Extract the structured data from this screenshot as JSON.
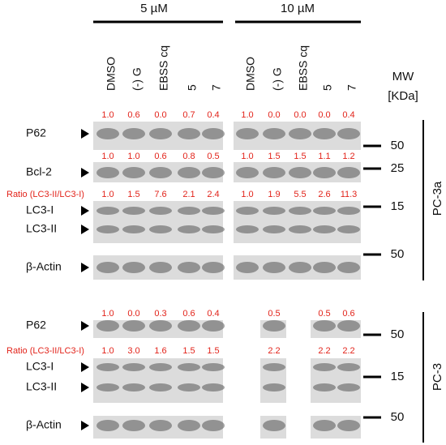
{
  "conditions": [
    {
      "label": "5 µM",
      "lanes": [
        "DMSO",
        "(-) G",
        "EBSS cq",
        "5",
        "7"
      ]
    },
    {
      "label": "10 µM",
      "lanes": [
        "DMSO",
        "(-) G",
        "EBSS cq",
        "5",
        "7"
      ]
    }
  ],
  "mw_header": [
    "MW",
    "[KDa]"
  ],
  "panels": [
    {
      "cell_line": "PC-3a",
      "blots": [
        {
          "labels": [
            "P62"
          ],
          "quant": [
            [
              "1.0",
              "0.6",
              "0.0",
              "0.7",
              "0.4"
            ],
            [
              "1.0",
              "0.0",
              "0.0",
              "0.0",
              "0.4"
            ]
          ]
        },
        {
          "labels": [
            "Bcl-2"
          ],
          "quant": [
            [
              "1.0",
              "1.0",
              "0.6",
              "0.8",
              "0.5"
            ],
            [
              "1.0",
              "1.5",
              "1.5",
              "1.1",
              "1.2"
            ]
          ]
        },
        {
          "labels": [
            "LC3-I",
            "LC3-II"
          ],
          "quant_label": "Ratio (LC3-II/LC3-I)",
          "quant": [
            [
              "1.0",
              "1.5",
              "7.6",
              "2.1",
              "2.4"
            ],
            [
              "1.0",
              "1.9",
              "5.5",
              "2.6",
              "11.3"
            ]
          ]
        },
        {
          "labels": [
            "β-Actin"
          ]
        }
      ],
      "mw_markers": [
        "50",
        "25",
        "15",
        "50"
      ]
    },
    {
      "cell_line": "PC-3",
      "blots": [
        {
          "labels": [
            "P62"
          ],
          "quant": [
            [
              "1.0",
              "0.0",
              "0.3",
              "0.6",
              "0.4"
            ],
            [
              null,
              "0.5",
              null,
              "0.5",
              "0.6"
            ]
          ]
        },
        {
          "labels": [
            "LC3-I",
            "LC3-II"
          ],
          "quant_label": "Ratio (LC3-II/LC3-I)",
          "quant": [
            [
              "1.0",
              "3.0",
              "1.6",
              "1.5",
              "1.5"
            ],
            [
              null,
              "2.2",
              null,
              "2.2",
              "2.2"
            ]
          ]
        },
        {
          "labels": [
            "β-Actin"
          ]
        }
      ],
      "mw_markers": [
        "50",
        "15",
        "50"
      ]
    }
  ]
}
